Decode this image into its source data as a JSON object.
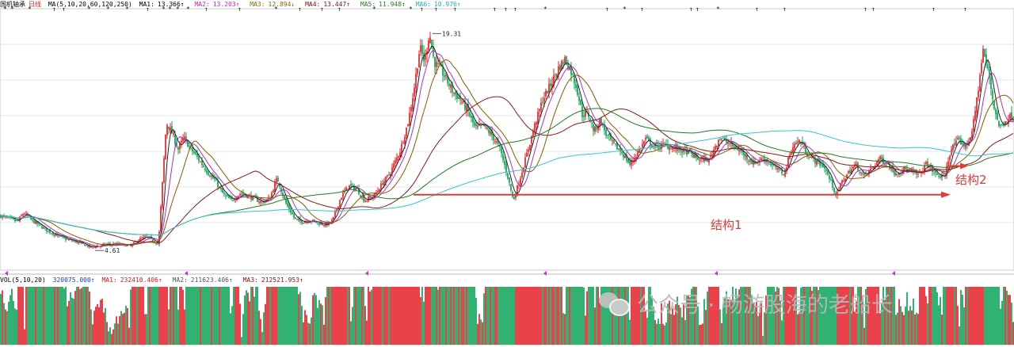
{
  "header": {
    "stock_name": "国机轴承",
    "period": "日线",
    "ma_spec": "MA(5,10,20,60,120,250)",
    "ma_values": [
      {
        "label": "MA1:",
        "value": "13.366↑",
        "color": "#000000"
      },
      {
        "label": "MA2:",
        "value": "13.203↑",
        "color": "#d020d0"
      },
      {
        "label": "MA3:",
        "value": "12.894↓",
        "color": "#8a6a00"
      },
      {
        "label": "MA4:",
        "value": "13.447↑",
        "color": "#7a1010"
      },
      {
        "label": "MA5:",
        "value": "11.948↑",
        "color": "#208020"
      },
      {
        "label": "MA6:",
        "value": "10.976↑",
        "color": "#20b0c0"
      }
    ]
  },
  "volume_header": {
    "spec": "VOL(5,10,20)",
    "vol_value": "320075.000↑",
    "ma_values": [
      {
        "label": "MA1:",
        "value": "232410.406↑",
        "color": "#000000"
      },
      {
        "label": "MA2:",
        "value": "211623.406↑",
        "color": "#d020d0"
      },
      {
        "label": "MA3:",
        "value": "212521.953↑",
        "color": "#8a6a00"
      }
    ]
  },
  "chart_data": {
    "type": "candlestick",
    "x": "trading days (oldest to newest)",
    "price_range": [
      3.5,
      20.5
    ],
    "high_label": "19.31",
    "low_label": "4.61",
    "price_path_keypoints": [
      [
        0,
        6.8
      ],
      [
        12,
        6.6
      ],
      [
        22,
        6.4
      ],
      [
        30,
        7.0
      ],
      [
        40,
        6.5
      ],
      [
        60,
        5.8
      ],
      [
        80,
        5.3
      ],
      [
        100,
        5.0
      ],
      [
        115,
        4.7
      ],
      [
        135,
        4.9
      ],
      [
        150,
        4.9
      ],
      [
        165,
        4.8
      ],
      [
        175,
        5.2
      ],
      [
        185,
        5.4
      ],
      [
        200,
        4.9
      ],
      [
        210,
        13.0
      ],
      [
        218,
        12.2
      ],
      [
        225,
        11.2
      ],
      [
        232,
        12.0
      ],
      [
        240,
        11.3
      ],
      [
        250,
        10.6
      ],
      [
        262,
        9.7
      ],
      [
        272,
        9.1
      ],
      [
        282,
        8.2
      ],
      [
        292,
        7.8
      ],
      [
        304,
        8.3
      ],
      [
        318,
        8.0
      ],
      [
        330,
        7.7
      ],
      [
        340,
        7.9
      ],
      [
        350,
        9.3
      ],
      [
        360,
        7.7
      ],
      [
        372,
        6.6
      ],
      [
        380,
        6.4
      ],
      [
        392,
        6.5
      ],
      [
        402,
        6.3
      ],
      [
        412,
        6.2
      ],
      [
        420,
        6.5
      ],
      [
        430,
        8.0
      ],
      [
        440,
        8.8
      ],
      [
        450,
        8.6
      ],
      [
        460,
        7.8
      ],
      [
        472,
        8.1
      ],
      [
        482,
        8.9
      ],
      [
        492,
        9.6
      ],
      [
        505,
        11.1
      ],
      [
        515,
        13.0
      ],
      [
        522,
        15.0
      ],
      [
        530,
        18.0
      ],
      [
        536,
        17.0
      ],
      [
        542,
        19.0
      ],
      [
        548,
        17.0
      ],
      [
        555,
        16.6
      ],
      [
        562,
        16.0
      ],
      [
        572,
        15.0
      ],
      [
        580,
        14.6
      ],
      [
        590,
        13.8
      ],
      [
        600,
        12.6
      ],
      [
        610,
        12.8
      ],
      [
        620,
        12.2
      ],
      [
        630,
        11.4
      ],
      [
        640,
        9.6
      ],
      [
        648,
        7.8
      ],
      [
        656,
        9.2
      ],
      [
        665,
        10.9
      ],
      [
        675,
        12.8
      ],
      [
        685,
        14.5
      ],
      [
        695,
        15.5
      ],
      [
        705,
        16.6
      ],
      [
        713,
        17.2
      ],
      [
        720,
        16.5
      ],
      [
        728,
        15.3
      ],
      [
        735,
        13.5
      ],
      [
        742,
        13.6
      ],
      [
        750,
        12.4
      ],
      [
        758,
        13.2
      ],
      [
        765,
        12.2
      ],
      [
        775,
        11.5
      ],
      [
        785,
        11.0
      ],
      [
        795,
        10.2
      ],
      [
        805,
        11.0
      ],
      [
        815,
        11.9
      ],
      [
        825,
        11.4
      ],
      [
        840,
        11.5
      ],
      [
        855,
        11.2
      ],
      [
        870,
        11.0
      ],
      [
        880,
        10.6
      ],
      [
        895,
        10.5
      ],
      [
        908,
        12.0
      ],
      [
        920,
        11.6
      ],
      [
        935,
        11.1
      ],
      [
        950,
        10.3
      ],
      [
        965,
        10.6
      ],
      [
        980,
        9.9
      ],
      [
        990,
        9.6
      ],
      [
        1000,
        11.4
      ],
      [
        1010,
        11.8
      ],
      [
        1020,
        10.8
      ],
      [
        1030,
        10.4
      ],
      [
        1040,
        10.1
      ],
      [
        1050,
        8.9
      ],
      [
        1056,
        8.1
      ],
      [
        1062,
        9.0
      ],
      [
        1070,
        9.6
      ],
      [
        1080,
        10.2
      ],
      [
        1090,
        9.4
      ],
      [
        1100,
        9.9
      ],
      [
        1110,
        10.6
      ],
      [
        1120,
        10.3
      ],
      [
        1130,
        9.6
      ],
      [
        1140,
        9.9
      ],
      [
        1150,
        9.7
      ],
      [
        1160,
        9.5
      ],
      [
        1170,
        10.3
      ],
      [
        1180,
        9.6
      ],
      [
        1192,
        9.3
      ],
      [
        1200,
        11.2
      ],
      [
        1210,
        11.8
      ],
      [
        1220,
        11.4
      ],
      [
        1228,
        12.6
      ],
      [
        1235,
        15.3
      ],
      [
        1241,
        17.8
      ],
      [
        1248,
        16.2
      ],
      [
        1255,
        14.0
      ],
      [
        1262,
        12.6
      ],
      [
        1270,
        13.2
      ],
      [
        1276,
        13.4
      ]
    ],
    "moving_averages": [
      "MA5",
      "MA10",
      "MA20",
      "MA60",
      "MA120",
      "MA250"
    ],
    "annotations": [
      {
        "label": "结构1",
        "type": "horizontal-arrow",
        "y_price": 8.2
      },
      {
        "label": "结构2",
        "type": "short-arrow",
        "y_price": 10.0
      }
    ],
    "volume_panel": {
      "series": "VOL",
      "moving_averages": [
        "MA5",
        "MA10",
        "MA20"
      ]
    },
    "colors": {
      "up": "#e4141e",
      "down": "#00a050",
      "ma5": "#222222",
      "ma10": "#b030c0",
      "ma20": "#8b5a00",
      "ma60": "#8a1818",
      "ma120": "#1d7d1d",
      "ma250": "#35c4cf",
      "grid": "#cfcfcf",
      "annotation": "#e03a3a"
    }
  },
  "watermark": {
    "text": "公众号 · 畅游股海的老船长"
  }
}
